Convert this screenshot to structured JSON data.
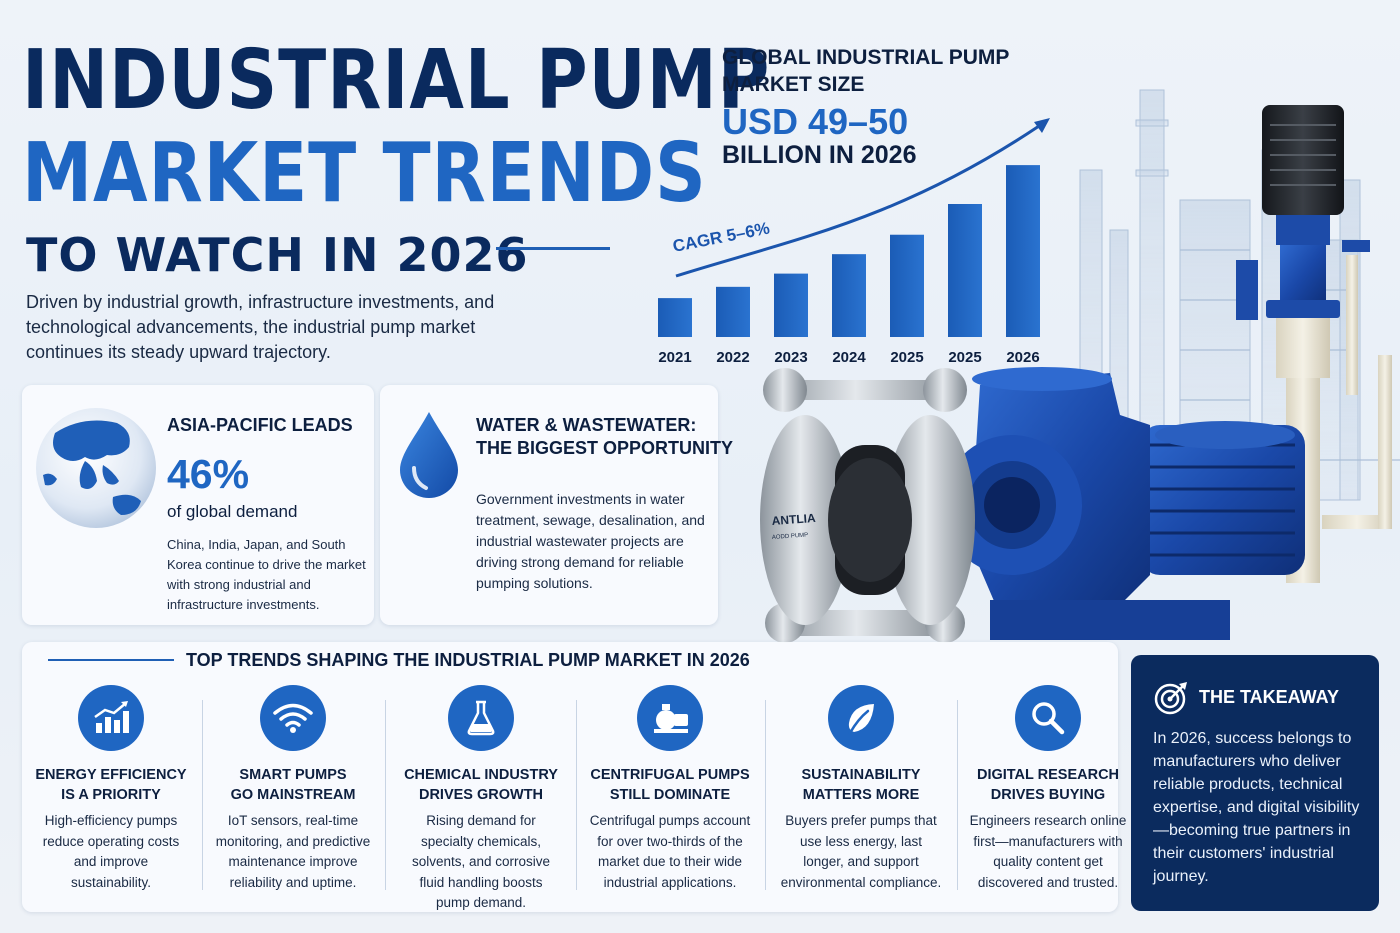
{
  "title": {
    "line1": "INDUSTRIAL PUMP",
    "line2": "MARKET TRENDS",
    "line3": "TO WATCH IN 2026"
  },
  "intro": "Driven by industrial growth, infrastructure investments, and technological advancements, the industrial pump market continues its steady upward trajectory.",
  "colors": {
    "navy": "#0a2a5e",
    "accent_blue": "#1f66c2",
    "takeaway_bg": "#0b2b5e"
  },
  "market": {
    "heading_line1": "GLOBAL INDUSTRIAL PUMP",
    "heading_line2": "MARKET SIZE",
    "value": "USD 49–50",
    "value_unit": "BILLION IN 2026",
    "cagr_label": "CAGR 5–6%"
  },
  "chart_data": {
    "type": "bar",
    "categories": [
      "2021",
      "2022",
      "2023",
      "2024",
      "2025",
      "2025",
      "2026"
    ],
    "values": [
      1.0,
      1.29,
      1.63,
      2.13,
      2.63,
      3.42,
      4.42
    ],
    "title": "",
    "xlabel": "",
    "ylabel": "",
    "ylim": [
      0,
      4.5
    ],
    "trend_arrow": true,
    "grid": false
  },
  "pump_label": {
    "line1": "ANTLIA",
    "line2": "AODD PUMP"
  },
  "asia": {
    "title": "ASIA-PACIFIC LEADS",
    "value": "46%",
    "value_label": "of global demand",
    "body": "China, India, Japan, and South Korea continue to drive the market with strong industrial and infrastructure investments.",
    "icon": "globe-icon"
  },
  "water": {
    "title_line1": "WATER & WASTEWATER:",
    "title_line2": "THE BIGGEST OPPORTUNITY",
    "body": "Government investments in water treatment, sewage, desalination, and industrial wastewater projects are driving strong demand for reliable pumping solutions.",
    "icon": "water-drop-icon"
  },
  "trends": {
    "heading": "TOP TRENDS SHAPING THE INDUSTRIAL PUMP MARKET IN 2026",
    "items": [
      {
        "title_line1": "ENERGY EFFICIENCY",
        "title_line2": "IS A PRIORITY",
        "body": "High-efficiency pumps reduce operating costs and improve sustainability.",
        "icon": "growth-chart-icon"
      },
      {
        "title_line1": "SMART PUMPS",
        "title_line2": "GO MAINSTREAM",
        "body": "IoT sensors, real-time monitoring, and predictive maintenance improve reliability and uptime.",
        "icon": "wifi-icon"
      },
      {
        "title_line1": "CHEMICAL INDUSTRY",
        "title_line2": "DRIVES GROWTH",
        "body": "Rising demand for specialty chemicals, solvents, and corrosive fluid handling boosts pump demand.",
        "icon": "flask-icon"
      },
      {
        "title_line1": "CENTRIFUGAL PUMPS",
        "title_line2": "STILL DOMINATE",
        "body": "Centrifugal pumps account for over two-thirds of the market due to their wide industrial applications.",
        "icon": "pump-icon"
      },
      {
        "title_line1": "SUSTAINABILITY",
        "title_line2": "MATTERS MORE",
        "body": "Buyers prefer pumps that use less energy, last longer, and support environmental compliance.",
        "icon": "leaf-icon"
      },
      {
        "title_line1": "DIGITAL RESEARCH",
        "title_line2": "DRIVES BUYING",
        "body": "Engineers research online first—manufacturers with quality content get discovered and trusted.",
        "icon": "search-icon"
      }
    ]
  },
  "takeaway": {
    "title": "THE TAKEAWAY",
    "body": "In 2026, success belongs to manufacturers who deliver reliable products, technical expertise, and digital visibility—becoming true partners in their customers' industrial journey.",
    "icon": "target-icon"
  }
}
